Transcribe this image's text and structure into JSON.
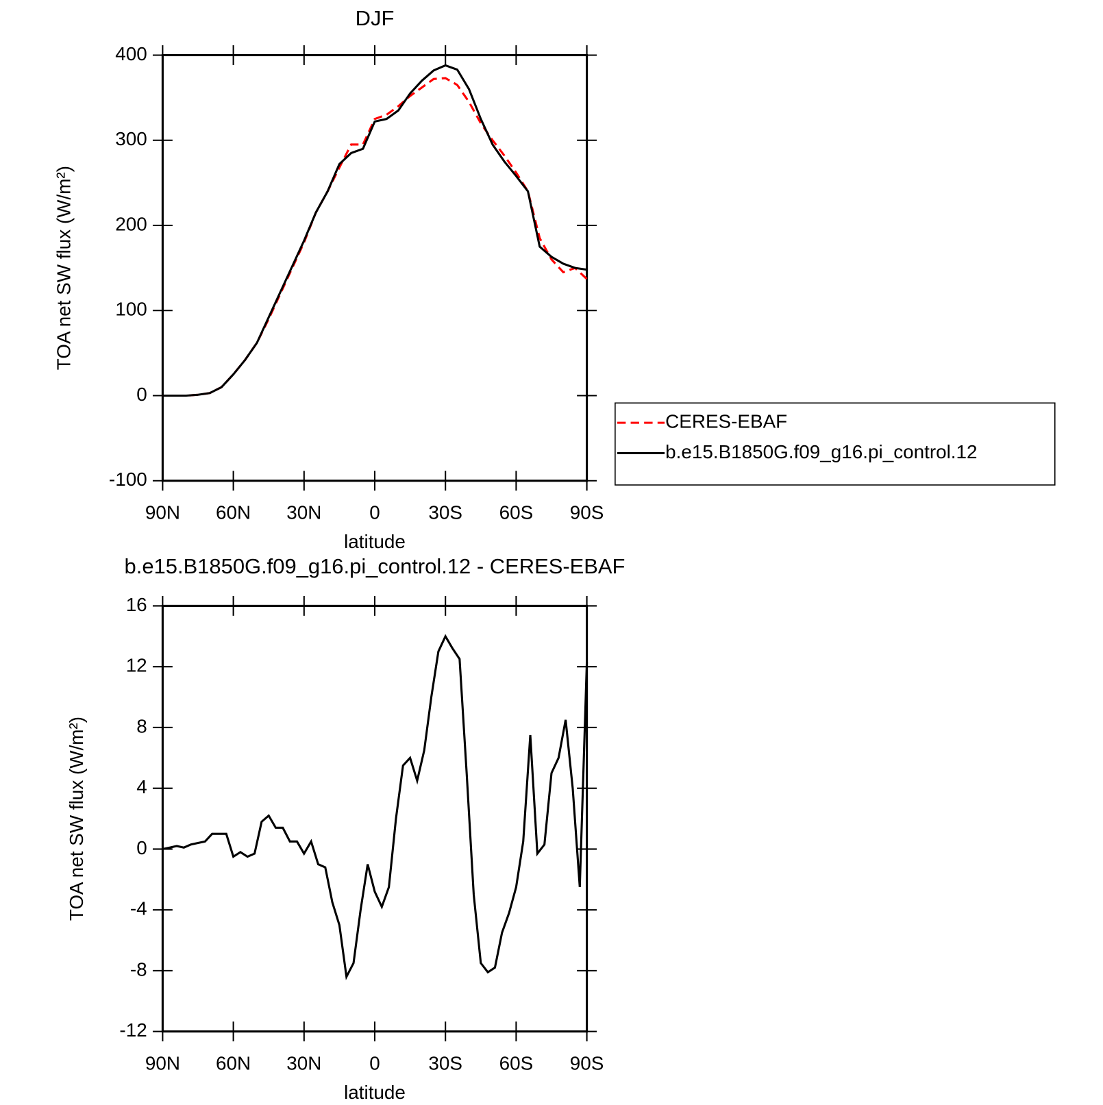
{
  "chart_data": [
    {
      "type": "line",
      "title": "DJF",
      "xlabel": "latitude",
      "ylabel": "TOA net SW flux (W/m²)",
      "x": [
        90,
        85,
        80,
        75,
        70,
        65,
        60,
        55,
        50,
        45,
        40,
        35,
        30,
        25,
        20,
        15,
        10,
        5,
        0,
        -5,
        -10,
        -15,
        -20,
        -25,
        -30,
        -35,
        -40,
        -45,
        -50,
        -55,
        -60,
        -65,
        -70,
        -75,
        -80,
        -85,
        -90
      ],
      "xlim": [
        90,
        -90
      ],
      "xticks": [
        {
          "value": 90,
          "label": "90N"
        },
        {
          "value": 60,
          "label": "60N"
        },
        {
          "value": 30,
          "label": "30N"
        },
        0,
        {
          "value": -30,
          "label": "30S"
        },
        {
          "value": -60,
          "label": "60S"
        },
        {
          "value": -90,
          "label": "90S"
        }
      ],
      "ylim": [
        -100,
        400
      ],
      "yticks": [
        -100,
        0,
        100,
        200,
        300,
        400
      ],
      "legend": "right",
      "series": [
        {
          "name": "CERES-EBAF",
          "color": "#ff0000",
          "linestyle": "dashed",
          "values": [
            0,
            0,
            0,
            1,
            3,
            10,
            25,
            42,
            62,
            90,
            120,
            150,
            180,
            215,
            240,
            268,
            295,
            295,
            325,
            330,
            340,
            352,
            362,
            372,
            373,
            365,
            345,
            320,
            300,
            282,
            262,
            240,
            185,
            160,
            145,
            150,
            137
          ]
        },
        {
          "name": "b.e15.B1850G.f09_g16.pi_control.12",
          "color": "#000000",
          "linestyle": "solid",
          "values": [
            0,
            0,
            0,
            1,
            3,
            10,
            25,
            42,
            62,
            92,
            122,
            152,
            182,
            215,
            240,
            272,
            285,
            290,
            322,
            325,
            335,
            355,
            370,
            382,
            388,
            383,
            360,
            325,
            295,
            275,
            258,
            240,
            175,
            163,
            155,
            150,
            148
          ]
        }
      ]
    },
    {
      "type": "line",
      "title": "b.e15.B1850G.f09_g16.pi_control.12 - CERES-EBAF",
      "xlabel": "latitude",
      "ylabel": "TOA net SW flux (W/m²)",
      "x": [
        90,
        87,
        84,
        81,
        78,
        75,
        72,
        69,
        66,
        63,
        60,
        57,
        54,
        51,
        48,
        45,
        42,
        39,
        36,
        33,
        30,
        27,
        24,
        21,
        18,
        15,
        12,
        9,
        6,
        3,
        0,
        -3,
        -6,
        -9,
        -12,
        -15,
        -18,
        -21,
        -24,
        -27,
        -30,
        -33,
        -36,
        -39,
        -42,
        -45,
        -48,
        -51,
        -54,
        -57,
        -60,
        -63,
        -66,
        -69,
        -72,
        -75,
        -78,
        -81,
        -84,
        -87,
        -90
      ],
      "xlim": [
        90,
        -90
      ],
      "xticks": [
        {
          "value": 90,
          "label": "90N"
        },
        {
          "value": 60,
          "label": "60N"
        },
        {
          "value": 30,
          "label": "30N"
        },
        0,
        {
          "value": -30,
          "label": "30S"
        },
        {
          "value": -60,
          "label": "60S"
        },
        {
          "value": -90,
          "label": "90S"
        }
      ],
      "ylim": [
        -12,
        16
      ],
      "yticks": [
        -12,
        -8,
        -4,
        0,
        4,
        8,
        12,
        16
      ],
      "series": [
        {
          "color": "#000000",
          "linestyle": "solid",
          "values": [
            0,
            0.1,
            0.2,
            0.1,
            0.3,
            0.4,
            0.5,
            1.0,
            1.0,
            1.0,
            -0.5,
            -0.2,
            -0.5,
            -0.3,
            1.8,
            2.2,
            1.4,
            1.4,
            0.5,
            0.5,
            -0.3,
            0.5,
            -1.0,
            -1.2,
            -3.5,
            -5,
            -8.4,
            -7.5,
            -4,
            -1,
            -2.8,
            -3.8,
            -2.5,
            2,
            5.5,
            6,
            4.5,
            6.5,
            10,
            13,
            14,
            13.2,
            12.5,
            5,
            -3,
            -7.5,
            -8.1,
            -7.8,
            -5.5,
            -4.2,
            -2.5,
            0.5,
            7.5,
            -0.3,
            0.3,
            5,
            6,
            8.5,
            4,
            -2.5,
            12.3
          ]
        }
      ]
    }
  ]
}
